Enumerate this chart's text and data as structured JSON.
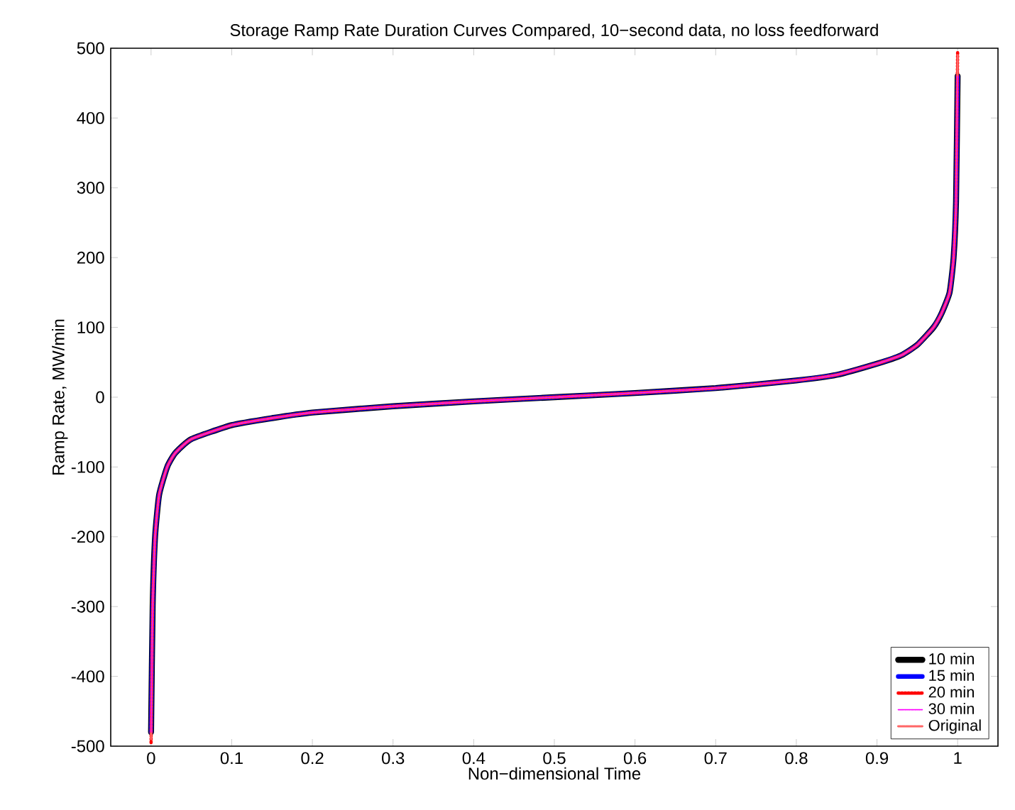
{
  "chart_data": {
    "type": "line",
    "title": "Storage Ramp Rate Duration Curves Compared, 10−second data, no loss feedforward",
    "xlabel": "Non−dimensional Time",
    "ylabel": "Ramp Rate, MW/min",
    "x": [
      0,
      0.002,
      0.005,
      0.01,
      0.02,
      0.03,
      0.05,
      0.1,
      0.15,
      0.2,
      0.3,
      0.4,
      0.5,
      0.6,
      0.7,
      0.8,
      0.85,
      0.9,
      0.93,
      0.95,
      0.97,
      0.98,
      0.99,
      0.995,
      0.998,
      1
    ],
    "series": [
      {
        "name": "10 min",
        "color": "#000000",
        "line_style": "solid",
        "values": [
          -480,
          -300,
          -200,
          -140,
          -100,
          -80,
          -60,
          -40,
          -30,
          -22,
          -13,
          -6,
          0,
          6,
          13,
          24,
          32,
          48,
          60,
          75,
          100,
          120,
          150,
          200,
          280,
          460
        ]
      },
      {
        "name": "15 min",
        "color": "#0000ff",
        "line_style": "dashed",
        "values": [
          -480,
          -300,
          -200,
          -140,
          -100,
          -80,
          -60,
          -40,
          -30,
          -22,
          -13,
          -6,
          0,
          6,
          13,
          24,
          32,
          48,
          60,
          75,
          100,
          120,
          150,
          200,
          280,
          460
        ]
      },
      {
        "name": "20 min",
        "color": "#ff0000",
        "line_style": "dotted",
        "values": [
          -495,
          -300,
          -200,
          -140,
          -100,
          -80,
          -60,
          -40,
          -30,
          -22,
          -13,
          -6,
          0,
          6,
          13,
          24,
          32,
          48,
          60,
          75,
          100,
          120,
          150,
          200,
          280,
          495
        ]
      },
      {
        "name": "30 min",
        "color": "#ff00ff",
        "line_style": "dashdot",
        "values": [
          -480,
          -300,
          -200,
          -140,
          -100,
          -80,
          -60,
          -40,
          -30,
          -22,
          -13,
          -6,
          0,
          6,
          13,
          24,
          32,
          48,
          60,
          75,
          100,
          120,
          150,
          200,
          280,
          460
        ]
      },
      {
        "name": "Original",
        "color": "#ff6666",
        "line_style": "dashed",
        "values": [
          -490,
          -300,
          -200,
          -140,
          -100,
          -80,
          -60,
          -40,
          -30,
          -22,
          -13,
          -6,
          0,
          6,
          13,
          24,
          32,
          48,
          60,
          75,
          100,
          120,
          150,
          200,
          280,
          490
        ]
      }
    ],
    "xlim": [
      -0.05,
      1.05
    ],
    "ylim": [
      -500,
      500
    ],
    "xticks": [
      0,
      0.1,
      0.2,
      0.3,
      0.4,
      0.5,
      0.6,
      0.7,
      0.8,
      0.9,
      1
    ],
    "yticks": [
      -500,
      -400,
      -300,
      -200,
      -100,
      0,
      100,
      200,
      300,
      400,
      500
    ],
    "grid": false,
    "legend": "bottom right",
    "marker": "none"
  }
}
